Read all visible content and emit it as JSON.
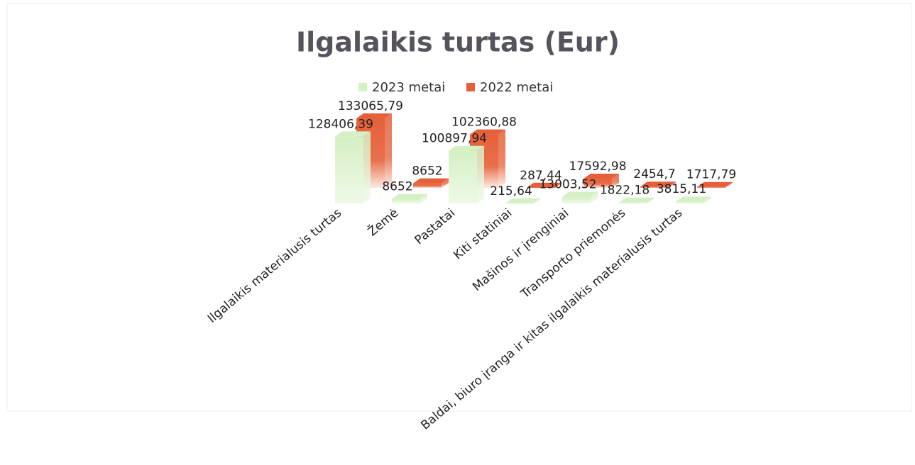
{
  "chart_data": {
    "type": "bar3d",
    "title": "Ilgalaikis turtas (Eur)",
    "categories": [
      "Ilgalaikis materialusis turtas",
      "Žemė",
      "Pastatai",
      "Kiti statiniai",
      "Mašinos ir įrenginiai",
      "Transporto priemonės",
      "Baldai, biuro įranga ir kitas ilgalaikis materialusis turtas"
    ],
    "series": [
      {
        "name": "2023 metai",
        "color": "#d5f0c4",
        "values": [
          128406.39,
          8652,
          100897.94,
          215.64,
          13003.52,
          1822.18,
          3815.11
        ],
        "value_labels": [
          "128406,39",
          "8652",
          "100897,94",
          "215,64",
          "13003,52",
          "1822,18",
          "3815,11"
        ]
      },
      {
        "name": "2022 metai",
        "color": "#e5603a",
        "values": [
          133065.79,
          8652,
          102360.88,
          287.44,
          17592.98,
          2454.7,
          1717.79
        ],
        "value_labels": [
          "133065,79",
          "8652",
          "102360,88",
          "287,44",
          "17592,98",
          "2454,7",
          "1717,79"
        ]
      }
    ],
    "legend": "top"
  }
}
